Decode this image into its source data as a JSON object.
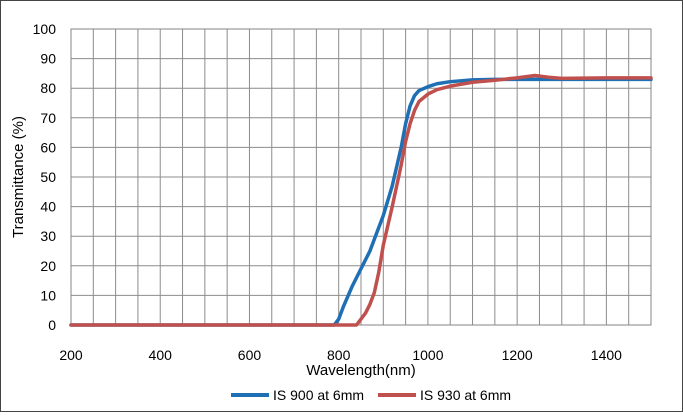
{
  "chart_data": {
    "type": "line",
    "title": "",
    "xlabel": "Wavelength(nm)",
    "ylabel": "Transmittance (%)",
    "xlim": [
      200,
      1500
    ],
    "ylim": [
      0,
      100
    ],
    "x_tick_labels": [
      "200",
      "400",
      "600",
      "800",
      "1000",
      "1200",
      "1400"
    ],
    "y_tick_labels": [
      "0",
      "10",
      "20",
      "30",
      "40",
      "50",
      "60",
      "70",
      "80",
      "90",
      "100"
    ],
    "x_ticks": [
      200,
      400,
      600,
      800,
      1000,
      1200,
      1400
    ],
    "y_ticks": [
      0,
      10,
      20,
      30,
      40,
      50,
      60,
      70,
      80,
      90,
      100
    ],
    "x_grid_step": 50,
    "y_grid_step": 10,
    "grid": true,
    "legend_position": "bottom",
    "series": [
      {
        "name": "IS 900 at 6mm",
        "color": "#1f6fb5",
        "points": [
          [
            200,
            0
          ],
          [
            700,
            0
          ],
          [
            790,
            0
          ],
          [
            800,
            2
          ],
          [
            810,
            6
          ],
          [
            830,
            13
          ],
          [
            850,
            19
          ],
          [
            870,
            25
          ],
          [
            880,
            29
          ],
          [
            900,
            37
          ],
          [
            920,
            47
          ],
          [
            940,
            60
          ],
          [
            950,
            68
          ],
          [
            960,
            74
          ],
          [
            970,
            77.5
          ],
          [
            980,
            79.2
          ],
          [
            1000,
            80.5
          ],
          [
            1020,
            81.5
          ],
          [
            1050,
            82.2
          ],
          [
            1100,
            82.8
          ],
          [
            1150,
            83
          ],
          [
            1200,
            83
          ],
          [
            1300,
            83
          ],
          [
            1400,
            83
          ],
          [
            1500,
            83
          ]
        ]
      },
      {
        "name": "IS 930 at 6mm",
        "color": "#c0504d",
        "points": [
          [
            200,
            0
          ],
          [
            700,
            0
          ],
          [
            840,
            0
          ],
          [
            850,
            2
          ],
          [
            860,
            4
          ],
          [
            870,
            7
          ],
          [
            880,
            11
          ],
          [
            890,
            18
          ],
          [
            900,
            27
          ],
          [
            920,
            40
          ],
          [
            940,
            54
          ],
          [
            950,
            62
          ],
          [
            960,
            68
          ],
          [
            970,
            72.5
          ],
          [
            980,
            75.5
          ],
          [
            1000,
            78
          ],
          [
            1020,
            79.5
          ],
          [
            1050,
            80.7
          ],
          [
            1100,
            82
          ],
          [
            1150,
            82.7
          ],
          [
            1200,
            83.5
          ],
          [
            1240,
            84.3
          ],
          [
            1270,
            83.7
          ],
          [
            1300,
            83.3
          ],
          [
            1400,
            83.5
          ],
          [
            1500,
            83.5
          ]
        ]
      }
    ]
  }
}
